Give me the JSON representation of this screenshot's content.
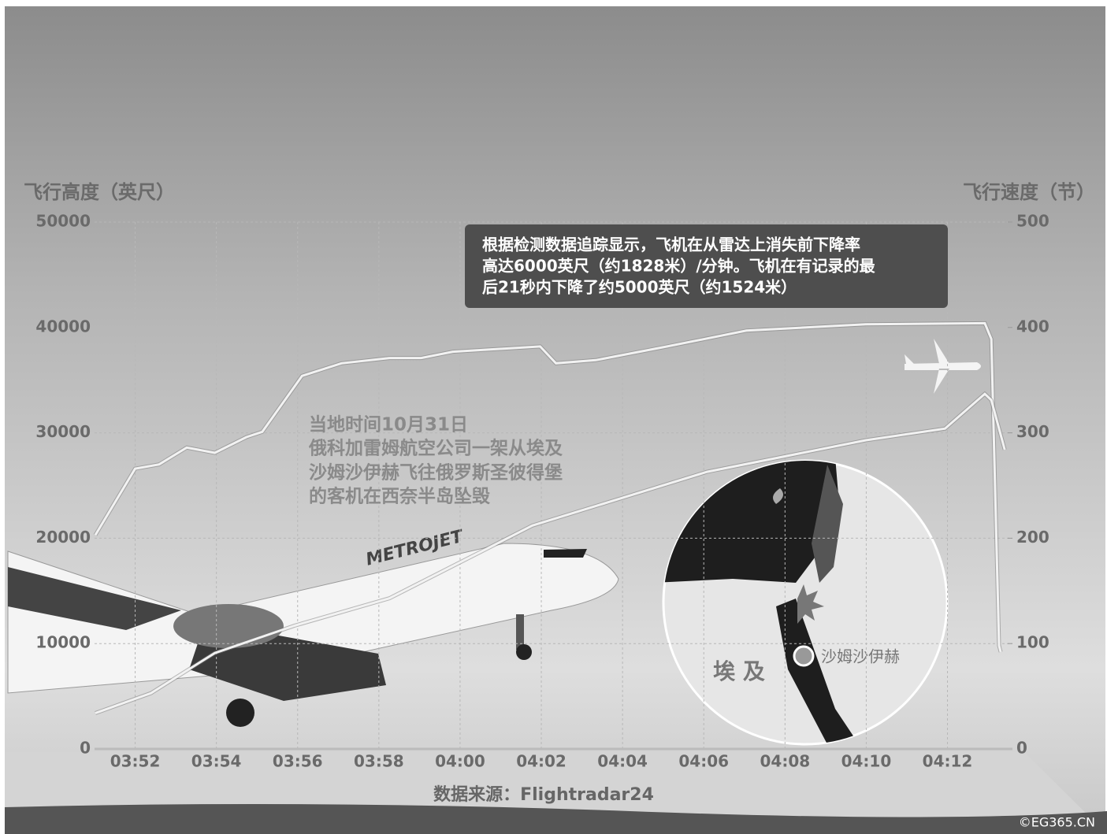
{
  "chart_data": {
    "type": "line",
    "y_title": "飞行高度（英尺）",
    "y2_title": "飞行速度（节）",
    "ylim": [
      0,
      50000
    ],
    "yticks": [
      0,
      10000,
      20000,
      30000,
      40000,
      50000
    ],
    "y2lim": [
      0,
      500
    ],
    "y2ticks": [
      0,
      100,
      200,
      300,
      400,
      500
    ],
    "xlim": [
      231,
      253.6
    ],
    "xticks": [
      {
        "value": 232,
        "label": "03:52"
      },
      {
        "value": 234,
        "label": "03:54"
      },
      {
        "value": 236,
        "label": "03:56"
      },
      {
        "value": 238,
        "label": "03:58"
      },
      {
        "value": 240,
        "label": "04:00"
      },
      {
        "value": 242,
        "label": "04:02"
      },
      {
        "value": 244,
        "label": "04:04"
      },
      {
        "value": 246,
        "label": "04:06"
      },
      {
        "value": 248,
        "label": "04:08"
      },
      {
        "value": 250,
        "label": "04:10"
      },
      {
        "value": 252,
        "label": "04:12"
      }
    ],
    "grid": true,
    "series": [
      {
        "color": "#f2f2f2",
        "x": [
          231.02,
          232,
          232.59,
          233.27,
          233.96,
          234.74,
          235.13,
          236.11,
          237.08,
          238.26,
          239.04,
          239.82,
          241.97,
          242.36,
          243.34,
          245.1,
          247.05,
          249.99,
          252.92,
          253.08,
          253.27,
          253.31
        ],
        "values": [
          20300,
          26600,
          27000,
          28600,
          28100,
          29600,
          30100,
          35400,
          36600,
          37100,
          37100,
          37700,
          38200,
          36600,
          36900,
          38200,
          39700,
          40300,
          40400,
          38900,
          9800,
          9200
        ]
      },
      {
        "color": "#f2f2f2",
        "axis": "y2",
        "x": [
          231.02,
          232.39,
          233.96,
          235.92,
          238.26,
          241.78,
          246.08,
          249.99,
          251.94,
          252.92,
          253.08,
          253.41
        ],
        "values": [
          34,
          53,
          91,
          117,
          143,
          212,
          263,
          293,
          304,
          337,
          331,
          284
        ]
      }
    ],
    "note_box": [
      "根据检测数据追踪显示，飞机在从雷达上消失前下降率",
      "高达6000英尺（约1828米）/分钟。飞机在有记录的最",
      "后21秒内下降了约5000英尺（约1524米）"
    ],
    "description": [
      "当地时间10月31日",
      "俄科加雷姆航空公司一架从埃及",
      "沙姆沙伊赫飞往俄罗斯圣彼得堡",
      "的客机在西奈半岛坠毁"
    ],
    "plane_label": "METROJET",
    "map_labels": [
      "埃 及",
      "沙姆沙伊赫"
    ],
    "source": "数据来源：Flightradar24",
    "watermark": "©EG365.CN"
  }
}
